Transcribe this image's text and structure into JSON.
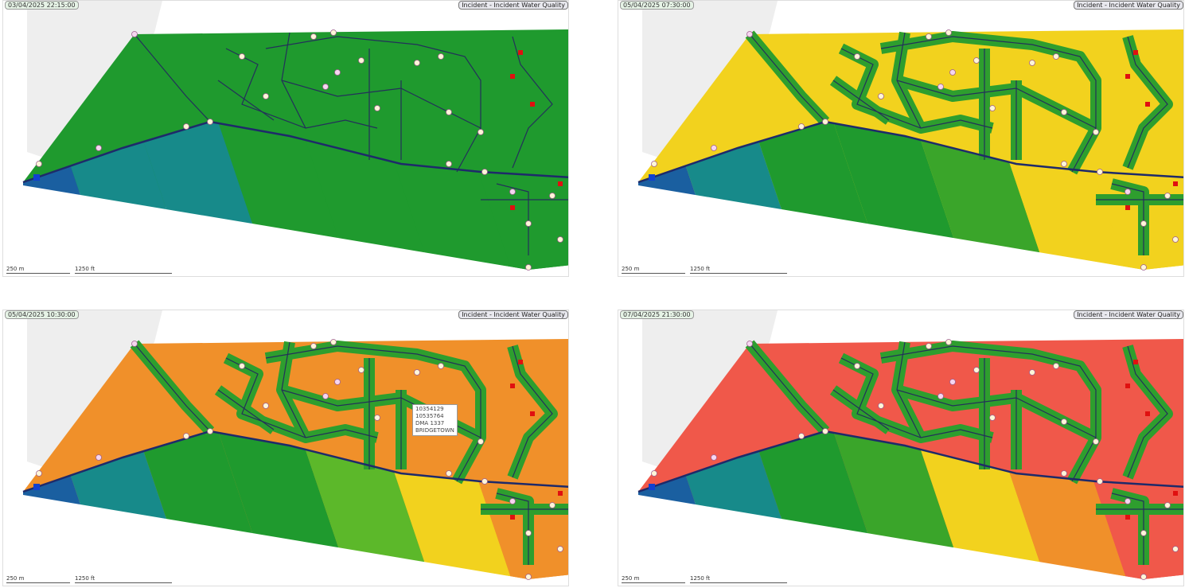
{
  "panels": [
    {
      "timestamp": "03/04/2025 22:15:00",
      "layer": "Incident - Incident Water Quality",
      "scale_metric": "250 m",
      "scale_imperial": "1250 ft"
    },
    {
      "timestamp": "05/04/2025 07:30:00",
      "layer": "Incident - Incident Water Quality",
      "scale_metric": "250 m",
      "scale_imperial": "1250 ft"
    },
    {
      "timestamp": "05/04/2025 10:30:00",
      "layer": "Incident - Incident Water Quality",
      "scale_metric": "250 m",
      "scale_imperial": "1250 ft",
      "tooltip": [
        "10354129",
        "10535764",
        "DMA 1337",
        "BRIDGETOWN"
      ]
    },
    {
      "timestamp": "07/04/2025 21:30:00",
      "layer": "Incident - Incident Water Quality",
      "scale_metric": "250 m",
      "scale_imperial": "1250 ft"
    }
  ]
}
